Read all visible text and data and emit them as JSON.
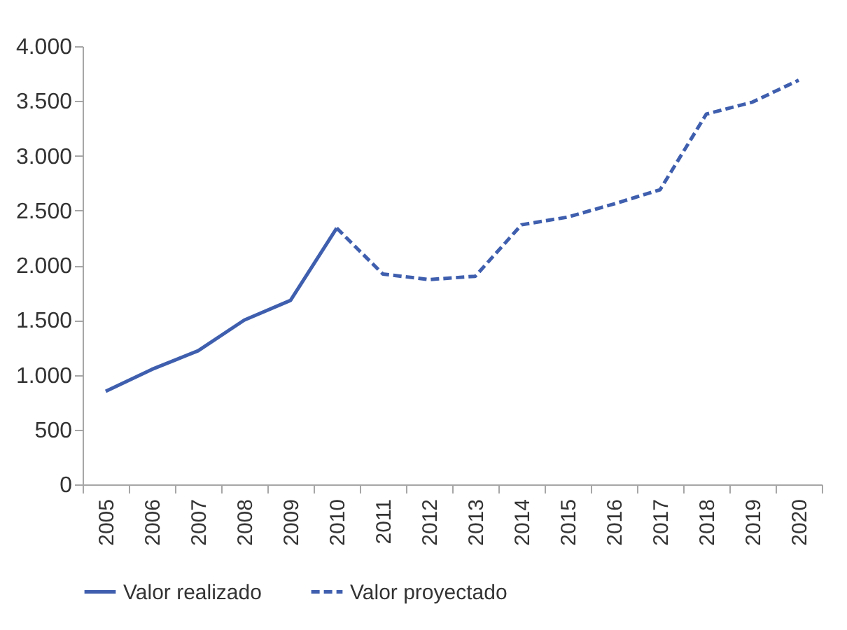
{
  "chart_data": {
    "type": "line",
    "categories": [
      "2005",
      "2006",
      "2007",
      "2008",
      "2009",
      "2010",
      "2011",
      "2012",
      "2013",
      "2014",
      "2015",
      "2016",
      "2017",
      "2018",
      "2019",
      "2020"
    ],
    "series": [
      {
        "name": "Valor realizado",
        "color": "#3f5fae",
        "line_style": "solid",
        "values": [
          850,
          1050,
          1220,
          1500,
          1680,
          2340,
          null,
          null,
          null,
          null,
          null,
          null,
          null,
          null,
          null,
          null
        ]
      },
      {
        "name": "Valor proyectado",
        "color": "#3f5fae",
        "line_style": "dashed",
        "values": [
          null,
          null,
          null,
          null,
          null,
          2340,
          1920,
          1870,
          1900,
          2370,
          2440,
          2560,
          2690,
          3380,
          3490,
          3690
        ]
      }
    ],
    "ylim": [
      0,
      4000
    ],
    "yticks": [
      0,
      500,
      {
        "value": 1000,
        "label": "1.000"
      },
      {
        "value": 1500,
        "label": "1.500"
      },
      {
        "value": 2000,
        "label": "2.000"
      },
      {
        "value": 2500,
        "label": "2.500"
      },
      {
        "value": 3000,
        "label": "3.000"
      },
      {
        "value": 3500,
        "label": "3.500"
      },
      {
        "value": 4000,
        "label": "4.000"
      }
    ],
    "grid": false,
    "legend": "bottom",
    "marker": "none"
  }
}
